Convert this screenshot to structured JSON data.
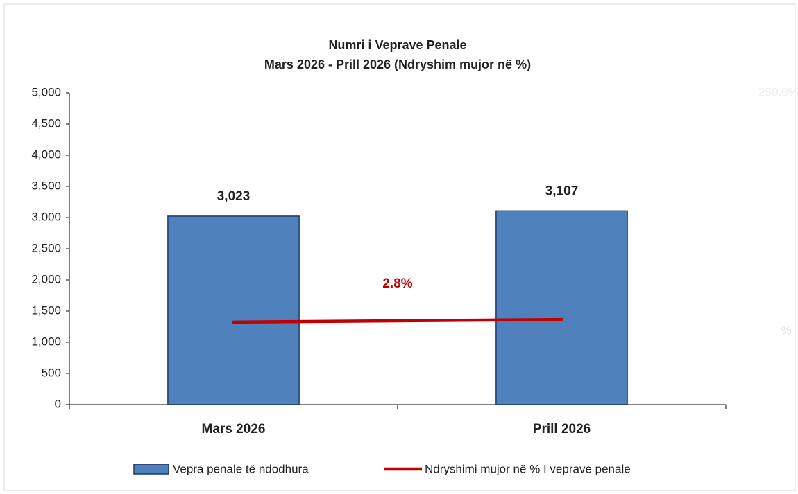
{
  "chart_data": {
    "type": "bar_line",
    "title": "Numri i Veprave Penale",
    "subtitle": "Mars 2026 - Prill 2026 (Ndryshim mujor në %)",
    "categories": [
      "Mars 2026",
      "Prill 2026"
    ],
    "series": [
      {
        "name": "Vepra penale të ndodhura",
        "type": "bar",
        "color": "#4f81bd",
        "values": [
          3023,
          3107
        ],
        "value_labels": [
          "3,023",
          "3,107"
        ]
      },
      {
        "name": "Ndryshimi mujor në % I veprave penale",
        "type": "line",
        "axis": "y2",
        "color": "#c00000",
        "values": [
          0,
          2.8
        ],
        "value_labels": [
          null,
          "2.8%"
        ]
      }
    ],
    "ylim": [
      0,
      5000
    ],
    "yticks": [
      0,
      500,
      {
        "value": 1000,
        "label": "1,000"
      },
      {
        "value": 1500,
        "label": "1,500"
      },
      {
        "value": 2000,
        "label": "2,000"
      },
      {
        "value": 2500,
        "label": "2,500"
      },
      {
        "value": 3000,
        "label": "3,000"
      },
      {
        "value": 3500,
        "label": "3,500"
      },
      {
        "value": 4000,
        "label": "4,000"
      },
      {
        "value": 4500,
        "label": "4,500"
      },
      {
        "value": 5000,
        "label": "5,000"
      }
    ],
    "y2lim": [
      -90,
      250
    ],
    "y2ticks": [
      {
        "value": 250,
        "label": "250.0%"
      }
    ],
    "y2label": "%",
    "legend": "bottom"
  }
}
